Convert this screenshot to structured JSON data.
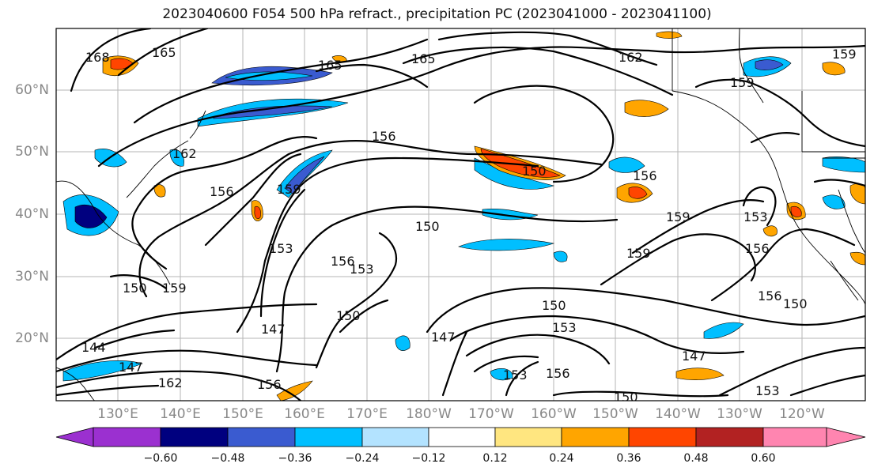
{
  "title": "2023040600 F054 500 hPa refract., precipitation PC (2023041000 - 2023041100)",
  "lat_labels": [
    "60°N",
    "50°N",
    "40°N",
    "30°N",
    "20°N"
  ],
  "lon_labels": [
    "130°E",
    "140°E",
    "150°E",
    "160°E",
    "170°E",
    "180°W",
    "170°W",
    "160°W",
    "150°W",
    "140°W",
    "130°W",
    "120°W"
  ],
  "colorbar": {
    "ticks": [
      "−0.60",
      "−0.48",
      "−0.36",
      "−0.24",
      "−0.12",
      "0.12",
      "0.24",
      "0.36",
      "0.48",
      "0.60"
    ],
    "colors": [
      "#9b30d0",
      "#00007f",
      "#3a5bd0",
      "#00bfff",
      "#b3e3ff",
      "#ffffff",
      "#ffe680",
      "#ffa500",
      "#ff4500",
      "#b22222",
      "#ff85b0"
    ]
  },
  "contour_labels": [
    "168",
    "165",
    "165",
    "165",
    "162",
    "159",
    "159",
    "162",
    "156",
    "156",
    "159",
    "153",
    "150",
    "156",
    "153",
    "150",
    "147",
    "144",
    "150",
    "159",
    "147",
    "156",
    "162",
    "153",
    "150",
    "147",
    "153",
    "156",
    "150",
    "156",
    "159",
    "159",
    "153",
    "156",
    "156",
    "150",
    "147",
    "153",
    "150"
  ]
}
